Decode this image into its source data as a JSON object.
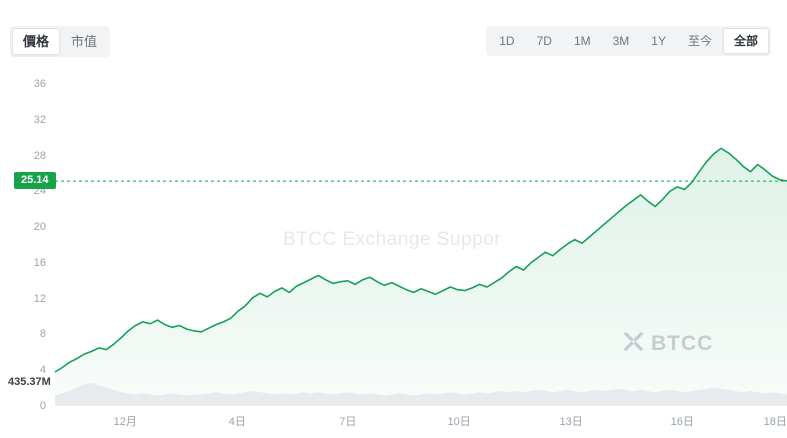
{
  "tabs": {
    "items": [
      "價格",
      "市值"
    ],
    "selected": "價格"
  },
  "ranges": {
    "items": [
      "1D",
      "7D",
      "1M",
      "3M",
      "1Y",
      "至今",
      "全部"
    ],
    "selected": "全部"
  },
  "watermark": {
    "text": "BTCC Exchange Suppor"
  },
  "logo": {
    "text": "BTCC"
  },
  "chart_data": {
    "type": "line",
    "title": "",
    "xlabel": "",
    "ylabel": "",
    "ylim": [
      0,
      36
    ],
    "yticks": [
      0,
      4,
      8,
      12,
      16,
      20,
      24,
      28,
      32,
      36
    ],
    "xticks": [
      {
        "label": "12月",
        "pos": 0.096
      },
      {
        "label": "4日",
        "pos": 0.249
      },
      {
        "label": "7日",
        "pos": 0.4
      },
      {
        "label": "10日",
        "pos": 0.552
      },
      {
        "label": "13日",
        "pos": 0.705
      },
      {
        "label": "16日",
        "pos": 0.857
      },
      {
        "label": "18日",
        "pos": 0.984
      }
    ],
    "grid": false,
    "legend": false,
    "line_color": "#18a058",
    "current": {
      "label": "25.14",
      "value": 25.14
    },
    "series": [
      {
        "name": "價格",
        "values": [
          3.8,
          4.3,
          4.9,
          5.3,
          5.8,
          6.1,
          6.5,
          6.3,
          6.9,
          7.6,
          8.4,
          9.0,
          9.4,
          9.2,
          9.6,
          9.1,
          8.8,
          9.0,
          8.6,
          8.4,
          8.3,
          8.7,
          9.1,
          9.4,
          9.8,
          10.6,
          11.2,
          12.1,
          12.6,
          12.2,
          12.8,
          13.2,
          12.7,
          13.4,
          13.8,
          14.2,
          14.6,
          14.1,
          13.7,
          13.9,
          14.0,
          13.6,
          14.1,
          14.4,
          13.9,
          13.5,
          13.8,
          13.4,
          13.0,
          12.7,
          13.1,
          12.8,
          12.5,
          12.9,
          13.3,
          13.0,
          12.9,
          13.2,
          13.6,
          13.3,
          13.8,
          14.3,
          15.0,
          15.6,
          15.2,
          16.0,
          16.6,
          17.2,
          16.8,
          17.5,
          18.1,
          18.6,
          18.2,
          18.9,
          19.6,
          20.3,
          21.0,
          21.7,
          22.4,
          23.0,
          23.6,
          22.9,
          22.3,
          23.1,
          24.0,
          24.5,
          24.2,
          25.0,
          26.2,
          27.3,
          28.2,
          28.8,
          28.3,
          27.6,
          26.8,
          26.2,
          27.0,
          26.4,
          25.7,
          25.3,
          25.14
        ]
      }
    ],
    "volume": {
      "label": "435.37M",
      "values": [
        0.45,
        0.55,
        0.65,
        0.8,
        0.95,
        1.0,
        0.9,
        0.8,
        0.7,
        0.6,
        0.55,
        0.5,
        0.55,
        0.5,
        0.45,
        0.5,
        0.55,
        0.5,
        0.45,
        0.5,
        0.5,
        0.55,
        0.6,
        0.55,
        0.5,
        0.55,
        0.6,
        0.65,
        0.6,
        0.55,
        0.5,
        0.55,
        0.5,
        0.55,
        0.6,
        0.55,
        0.6,
        0.55,
        0.5,
        0.55,
        0.6,
        0.55,
        0.5,
        0.55,
        0.5,
        0.45,
        0.5,
        0.55,
        0.5,
        0.45,
        0.5,
        0.55,
        0.5,
        0.55,
        0.6,
        0.55,
        0.5,
        0.55,
        0.6,
        0.55,
        0.6,
        0.65,
        0.6,
        0.65,
        0.6,
        0.65,
        0.7,
        0.65,
        0.6,
        0.65,
        0.7,
        0.65,
        0.6,
        0.65,
        0.7,
        0.65,
        0.7,
        0.75,
        0.7,
        0.65,
        0.7,
        0.65,
        0.6,
        0.65,
        0.7,
        0.65,
        0.6,
        0.65,
        0.7,
        0.75,
        0.8,
        0.75,
        0.7,
        0.65,
        0.6,
        0.65,
        0.6,
        0.55,
        0.6,
        0.55,
        0.5
      ]
    }
  }
}
